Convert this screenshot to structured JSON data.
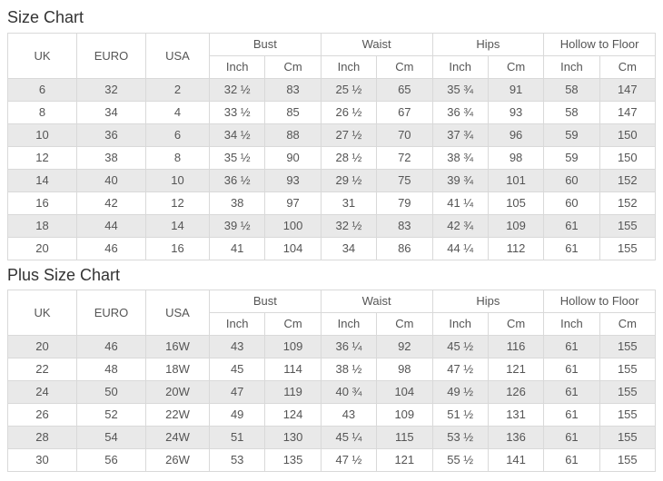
{
  "titles": {
    "size_chart": "Size Chart",
    "plus_size_chart": "Plus Size Chart"
  },
  "header": {
    "uk": "UK",
    "euro": "EURO",
    "usa": "USA",
    "bust": "Bust",
    "waist": "Waist",
    "hips": "Hips",
    "hollow_to_floor": "Hollow to Floor",
    "inch": "Inch",
    "cm": "Cm"
  },
  "size_chart": {
    "rows": [
      [
        "6",
        "32",
        "2",
        "32 ½",
        "83",
        "25 ½",
        "65",
        "35 ¾",
        "91",
        "58",
        "147"
      ],
      [
        "8",
        "34",
        "4",
        "33 ½",
        "85",
        "26 ½",
        "67",
        "36 ¾",
        "93",
        "58",
        "147"
      ],
      [
        "10",
        "36",
        "6",
        "34 ½",
        "88",
        "27 ½",
        "70",
        "37 ¾",
        "96",
        "59",
        "150"
      ],
      [
        "12",
        "38",
        "8",
        "35 ½",
        "90",
        "28 ½",
        "72",
        "38 ¾",
        "98",
        "59",
        "150"
      ],
      [
        "14",
        "40",
        "10",
        "36 ½",
        "93",
        "29 ½",
        "75",
        "39 ¾",
        "101",
        "60",
        "152"
      ],
      [
        "16",
        "42",
        "12",
        "38",
        "97",
        "31",
        "79",
        "41 ¼",
        "105",
        "60",
        "152"
      ],
      [
        "18",
        "44",
        "14",
        "39 ½",
        "100",
        "32 ½",
        "83",
        "42 ¾",
        "109",
        "61",
        "155"
      ],
      [
        "20",
        "46",
        "16",
        "41",
        "104",
        "34",
        "86",
        "44 ¼",
        "112",
        "61",
        "155"
      ]
    ]
  },
  "plus_size_chart": {
    "rows": [
      [
        "20",
        "46",
        "16W",
        "43",
        "109",
        "36 ¼",
        "92",
        "45 ½",
        "116",
        "61",
        "155"
      ],
      [
        "22",
        "48",
        "18W",
        "45",
        "114",
        "38 ½",
        "98",
        "47 ½",
        "121",
        "61",
        "155"
      ],
      [
        "24",
        "50",
        "20W",
        "47",
        "119",
        "40 ¾",
        "104",
        "49 ½",
        "126",
        "61",
        "155"
      ],
      [
        "26",
        "52",
        "22W",
        "49",
        "124",
        "43",
        "109",
        "51 ½",
        "131",
        "61",
        "155"
      ],
      [
        "28",
        "54",
        "24W",
        "51",
        "130",
        "45 ¼",
        "115",
        "53 ½",
        "136",
        "61",
        "155"
      ],
      [
        "30",
        "56",
        "26W",
        "53",
        "135",
        "47 ½",
        "121",
        "55 ½",
        "141",
        "61",
        "155"
      ]
    ]
  },
  "colors": {
    "stripe": "#e9e9e9",
    "border": "#d9d9d9",
    "text": "#555555",
    "title": "#333333"
  }
}
